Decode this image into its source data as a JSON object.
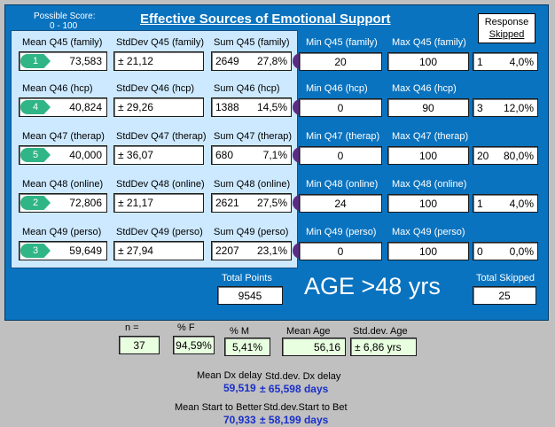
{
  "header": {
    "possible_score_label": "Possible Score:",
    "possible_score_range": "0 - 100",
    "title": "Effective Sources of Emotional Support",
    "response_label": "Response",
    "skipped_label": "Skipped"
  },
  "rows": [
    {
      "mean_label": "Mean Q45 (family)",
      "std_label": "StdDev Q45 (family)",
      "sum_label": "Sum Q45 (family)",
      "min_label": "Min Q45 (family)",
      "max_label": "Max Q45 (family)",
      "rank": "1",
      "mean": "73,583",
      "std": "± 21,12",
      "sum": "2649",
      "sum_pct": "27,8%",
      "min": "20",
      "max": "100",
      "skip_n": "1",
      "skip_pct": "4,0%"
    },
    {
      "mean_label": "Mean Q46 (hcp)",
      "std_label": "StdDev Q46 (hcp)",
      "sum_label": "Sum Q46 (hcp)",
      "min_label": "Min Q46 (hcp)",
      "max_label": "Max Q46 (hcp)",
      "rank": "4",
      "mean": "40,824",
      "std": "± 29,26",
      "sum": "1388",
      "sum_pct": "14,5%",
      "min": "0",
      "max": "90",
      "skip_n": "3",
      "skip_pct": "12,0%"
    },
    {
      "mean_label": "Mean Q47 (therap)",
      "std_label": "StdDev Q47 (therap)",
      "sum_label": "Sum Q47 (therap)",
      "min_label": "Min Q47 (therap)",
      "max_label": "Max Q47 (therap)",
      "rank": "5",
      "mean": "40,000",
      "std": "± 36,07",
      "sum": "680",
      "sum_pct": "7,1%",
      "min": "0",
      "max": "100",
      "skip_n": "20",
      "skip_pct": "80,0%"
    },
    {
      "mean_label": "Mean Q48 (online)",
      "std_label": "StdDev Q48 (online)",
      "sum_label": "Sum Q48 (online)",
      "min_label": "Min Q48 (online)",
      "max_label": "Max Q48 (online)",
      "rank": "2",
      "mean": "72,806",
      "std": "± 21,17",
      "sum": "2621",
      "sum_pct": "27,5%",
      "min": "24",
      "max": "100",
      "skip_n": "1",
      "skip_pct": "4,0%"
    },
    {
      "mean_label": "Mean Q49 (perso)",
      "std_label": "StdDev Q49 (perso)",
      "sum_label": "Sum Q49 (perso)",
      "min_label": "Min Q49 (perso)",
      "max_label": "Max Q49 (perso)",
      "rank": "3",
      "mean": "59,649",
      "std": "± 27,94",
      "sum": "2207",
      "sum_pct": "23,1%",
      "min": "0",
      "max": "100",
      "skip_n": "0",
      "skip_pct": "0,0%"
    }
  ],
  "totals": {
    "total_points_label": "Total Points",
    "total_points": "9545",
    "age_text": "AGE >48 yrs",
    "total_skipped_label": "Total Skipped",
    "total_skipped": "25"
  },
  "stats": {
    "n_label": "n =",
    "n": "37",
    "pf_label": "% F",
    "pf": "94,59%",
    "pm_label": "% M",
    "pm": "5,41%",
    "mean_age_label": "Mean Age",
    "mean_age": "56,16",
    "std_age_label": "Std.dev. Age",
    "std_age": "± 6,86 yrs",
    "mean_dx_label": "Mean Dx delay",
    "std_dx_label": "Std.dev. Dx delay",
    "mean_dx": "59,519",
    "std_dx": "± 65,598 days",
    "mean_sb_label": "Mean Start to Better",
    "std_sb_label": "Std.dev.Start to Bet",
    "mean_sb": "70,933",
    "std_sb": "± 58,199 days"
  },
  "colors": {
    "panel": "#0a73bf",
    "subpanel": "#cde9ff",
    "rank_green": "#2fb586",
    "rank_purple": "#5a2d82",
    "value_blue": "#1a2fc8"
  }
}
